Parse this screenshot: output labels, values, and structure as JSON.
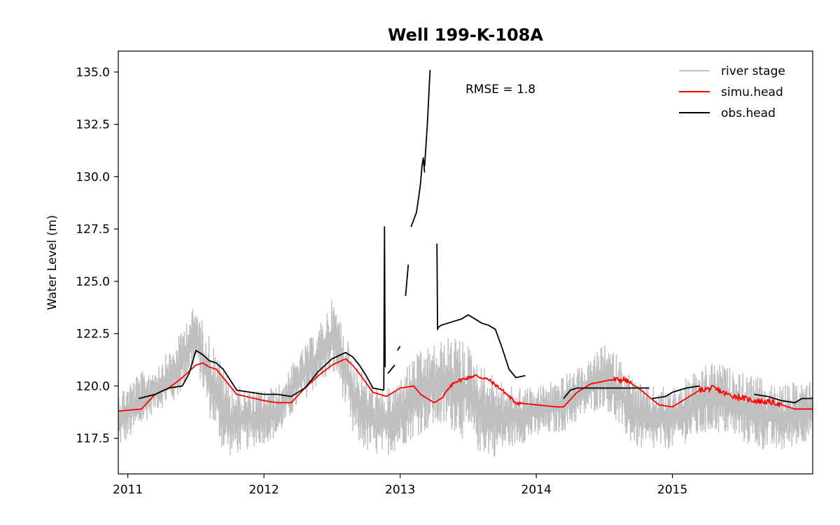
{
  "chart_data": {
    "type": "line",
    "title": "Well 199-K-108A",
    "xlabel": "",
    "ylabel": "Water Level (m)",
    "xlim": [
      2010.93,
      2016.03
    ],
    "ylim": [
      115.8,
      136.0
    ],
    "x_ticks": [
      2011,
      2012,
      2013,
      2014,
      2015
    ],
    "x_tick_labels": [
      "2011",
      "2012",
      "2013",
      "2014",
      "2015"
    ],
    "y_ticks": [
      117.5,
      120.0,
      122.5,
      125.0,
      127.5,
      130.0,
      132.5,
      135.0
    ],
    "y_tick_labels": [
      "117.5",
      "120.0",
      "122.5",
      "125.0",
      "127.5",
      "130.0",
      "132.5",
      "135.0"
    ],
    "annotation": "RMSE = 1.8",
    "legend": {
      "position": "top-right",
      "entries": [
        "river stage",
        "simu.head",
        "obs.head"
      ]
    },
    "colors": {
      "river_stage": "#bfbfbf",
      "simu_head": "#ff0000",
      "obs_head": "#000000"
    },
    "series": [
      {
        "name": "river stage",
        "color": "#bfbfbf",
        "style": "noisy-band",
        "envelope": {
          "x": [
            2010.93,
            2011.05,
            2011.2,
            2011.35,
            2011.45,
            2011.5,
            2011.6,
            2011.7,
            2011.75,
            2011.9,
            2012.1,
            2012.25,
            2012.4,
            2012.5,
            2012.55,
            2012.65,
            2012.75,
            2012.85,
            2012.95,
            2013.1,
            2013.25,
            2013.4,
            2013.5,
            2013.6,
            2013.7,
            2013.8,
            2014.0,
            2014.2,
            2014.35,
            2014.5,
            2014.6,
            2014.7,
            2014.8,
            2015.0,
            2015.2,
            2015.3,
            2015.45,
            2015.6,
            2015.8,
            2016.03
          ],
          "low": [
            117.0,
            117.6,
            118.8,
            119.2,
            120.5,
            121.0,
            118.5,
            116.8,
            116.6,
            117.0,
            117.5,
            119.0,
            120.0,
            120.5,
            120.2,
            117.5,
            116.8,
            116.6,
            116.8,
            117.5,
            118.0,
            117.8,
            117.2,
            116.7,
            116.6,
            117.0,
            117.5,
            117.8,
            118.5,
            119.0,
            118.0,
            117.2,
            116.8,
            117.0,
            117.5,
            117.8,
            117.5,
            117.0,
            116.8,
            117.5
          ],
          "high": [
            119.8,
            120.5,
            121.0,
            122.0,
            123.6,
            123.8,
            122.5,
            121.0,
            120.2,
            119.8,
            120.0,
            121.5,
            122.8,
            124.2,
            123.5,
            121.5,
            120.5,
            119.8,
            120.0,
            121.5,
            122.0,
            122.5,
            122.0,
            121.0,
            120.5,
            120.0,
            120.0,
            120.5,
            121.0,
            122.0,
            121.5,
            120.5,
            120.0,
            120.0,
            120.8,
            121.2,
            120.8,
            120.5,
            120.0,
            120.5
          ]
        }
      },
      {
        "name": "simu.head",
        "color": "#ff0000",
        "x": [
          2010.93,
          2011.1,
          2011.2,
          2011.3,
          2011.4,
          2011.5,
          2011.55,
          2011.6,
          2011.65,
          2011.7,
          2011.8,
          2012.0,
          2012.1,
          2012.2,
          2012.3,
          2012.4,
          2012.5,
          2012.6,
          2012.65,
          2012.7,
          2012.8,
          2012.9,
          2013.0,
          2013.1,
          2013.15,
          2013.25,
          2013.3,
          2013.4,
          2013.55,
          2013.65,
          2013.75,
          2013.85,
          2014.0,
          2014.15,
          2014.2,
          2014.3,
          2014.4,
          2014.55,
          2014.65,
          2014.75,
          2014.9,
          2015.0,
          2015.1,
          2015.2,
          2015.3,
          2015.4,
          2015.6,
          2015.75,
          2015.9,
          2016.03
        ],
        "y": [
          118.8,
          118.9,
          119.6,
          119.9,
          120.4,
          121.0,
          121.1,
          120.9,
          120.8,
          120.4,
          119.6,
          119.3,
          119.2,
          119.2,
          119.9,
          120.5,
          121.0,
          121.3,
          121.0,
          120.6,
          119.7,
          119.5,
          119.9,
          120.0,
          119.6,
          119.2,
          119.4,
          120.2,
          120.5,
          120.3,
          119.8,
          119.2,
          119.1,
          119.0,
          119.0,
          119.7,
          120.1,
          120.3,
          120.3,
          119.9,
          119.1,
          119.0,
          119.4,
          119.8,
          119.9,
          119.6,
          119.3,
          119.2,
          118.9,
          118.9
        ]
      },
      {
        "name": "obs.head",
        "color": "#000000",
        "segments": [
          {
            "x": [
              2011.08,
              2011.2,
              2011.3,
              2011.4,
              2011.45,
              2011.5,
              2011.55,
              2011.6,
              2011.65,
              2011.7,
              2011.75,
              2011.8,
              2011.9,
              2012.0,
              2012.1,
              2012.2,
              2012.3,
              2012.4,
              2012.5,
              2012.6,
              2012.65,
              2012.7,
              2012.75,
              2012.8,
              2012.88
            ],
            "y": [
              119.4,
              119.6,
              119.9,
              120.0,
              120.6,
              121.7,
              121.5,
              121.2,
              121.1,
              120.8,
              120.3,
              119.8,
              119.7,
              119.6,
              119.6,
              119.5,
              119.9,
              120.7,
              121.3,
              121.6,
              121.4,
              121.0,
              120.5,
              119.9,
              119.8
            ]
          },
          {
            "x": [
              2012.88,
              2012.885,
              2012.89
            ],
            "y": [
              119.8,
              127.6,
              120.9
            ]
          },
          {
            "x": [
              2012.91,
              2012.96
            ],
            "y": [
              120.6,
              121.0
            ]
          },
          {
            "x": [
              2012.98,
              2013.0
            ],
            "y": [
              121.7,
              121.9
            ]
          },
          {
            "x": [
              2013.04,
              2013.06
            ],
            "y": [
              124.3,
              125.8
            ]
          },
          {
            "x": [
              2013.08,
              2013.12,
              2013.14
            ],
            "y": [
              127.6,
              128.3,
              129.2
            ]
          },
          {
            "x": [
              2013.14,
              2013.15,
              2013.16,
              2013.17,
              2013.18
            ],
            "y": [
              129.2,
              129.7,
              130.5,
              130.9,
              130.2
            ]
          },
          {
            "x": [
              2013.18,
              2013.2,
              2013.22
            ],
            "y": [
              130.5,
              132.5,
              135.1
            ]
          },
          {
            "x": [
              2013.27,
              2013.275,
              2013.28,
              2013.3,
              2013.4,
              2013.45,
              2013.5,
              2013.55,
              2013.6,
              2013.65,
              2013.7,
              2013.75,
              2013.8,
              2013.85,
              2013.92
            ],
            "y": [
              126.8,
              122.7,
              122.8,
              122.9,
              123.1,
              123.2,
              123.4,
              123.2,
              123.0,
              122.9,
              122.7,
              121.8,
              120.8,
              120.4,
              120.5
            ]
          },
          {
            "x": [
              2014.2,
              2014.25,
              2014.3,
              2014.4,
              2014.83
            ],
            "y": [
              119.4,
              119.8,
              119.9,
              119.9,
              119.9
            ]
          },
          {
            "x": [
              2014.85,
              2014.95,
              2015.0,
              2015.05,
              2015.1,
              2015.2
            ],
            "y": [
              119.4,
              119.5,
              119.7,
              119.8,
              119.9,
              120.0
            ]
          },
          {
            "x": [
              2015.6,
              2015.7,
              2015.8,
              2015.9,
              2015.95,
              2016.03
            ],
            "y": [
              119.6,
              119.5,
              119.3,
              119.2,
              119.4,
              119.4
            ]
          }
        ]
      }
    ]
  }
}
